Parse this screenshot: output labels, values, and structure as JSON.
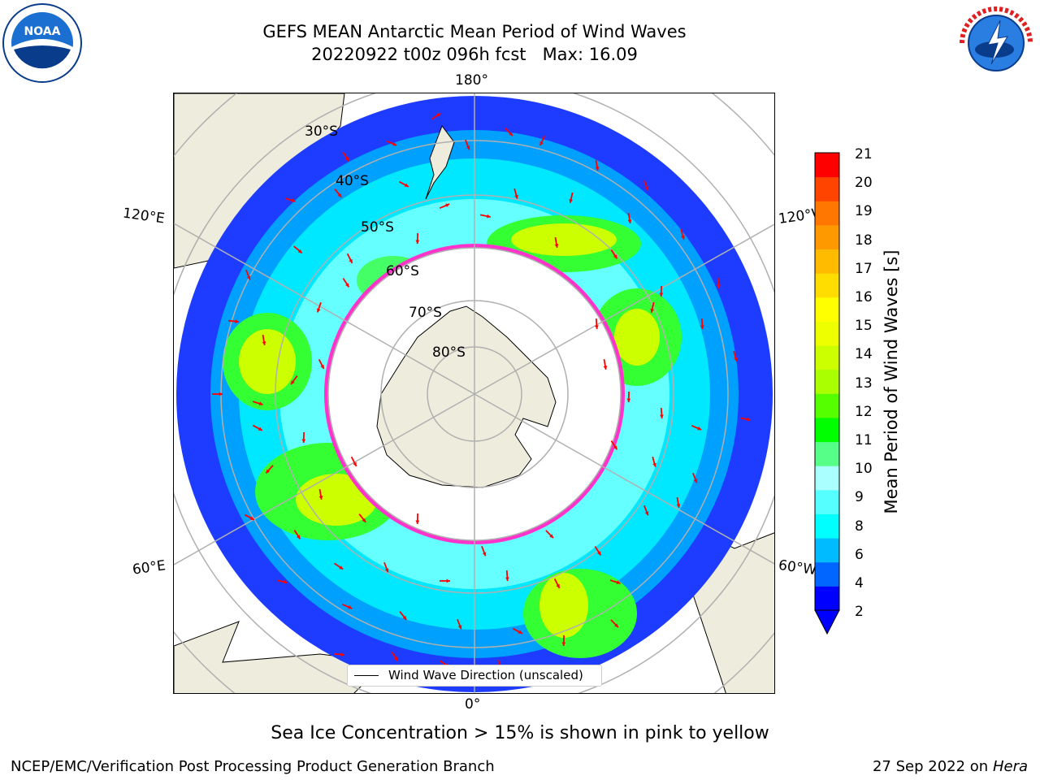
{
  "header": {
    "title_line1": "GEFS MEAN Antarctic Mean Period of Wind Waves",
    "title_line2": "20220922 t00z 096h fcst   Max: 16.09"
  },
  "logos": {
    "left": "NOAA",
    "right": "NATIONAL WEATHER SERVICE"
  },
  "map": {
    "projection": "south-polar-stereographic",
    "longitude_labels": {
      "top": "180°",
      "bottom": "0°",
      "upper_left": "120°E",
      "upper_right": "120°W",
      "lower_left": "60°E",
      "lower_right": "60°W"
    },
    "latitude_labels": [
      "30°S",
      "40°S",
      "50°S",
      "60°S",
      "70°S",
      "80°S"
    ],
    "colors": {
      "land": "#eeecdc",
      "coast": "#000000",
      "grid": "#b0b0b0",
      "arrow": "#ff0000",
      "sea_ice": "#ff33cc"
    }
  },
  "colorbar": {
    "label": "Mean Period of Wind Waves [s]",
    "ticks": [
      "21",
      "20",
      "19",
      "18",
      "17",
      "16",
      "15",
      "14",
      "13",
      "12",
      "11",
      "10",
      "9",
      "8",
      "6",
      "4",
      "2"
    ],
    "extend": "min",
    "colors": [
      "#0000ff",
      "#0066ff",
      "#00bbff",
      "#00ffff",
      "#55ffff",
      "#aaffff",
      "#55ff88",
      "#00ff00",
      "#55ff00",
      "#aaff00",
      "#ccff00",
      "#eeff00",
      "#ffff00",
      "#ffdd00",
      "#ffbb00",
      "#ff9900",
      "#ff7700",
      "#ff4400",
      "#ff0000"
    ]
  },
  "legend": {
    "entry": "Wind Wave Direction (unscaled)"
  },
  "notes": {
    "sea_ice": "Sea Ice Concentration > 15% is shown in pink to yellow"
  },
  "footer": {
    "left": "NCEP/EMC/Verification Post Processing Product Generation Branch",
    "right_date": "27 Sep 2022 on",
    "right_host": "Hera"
  }
}
